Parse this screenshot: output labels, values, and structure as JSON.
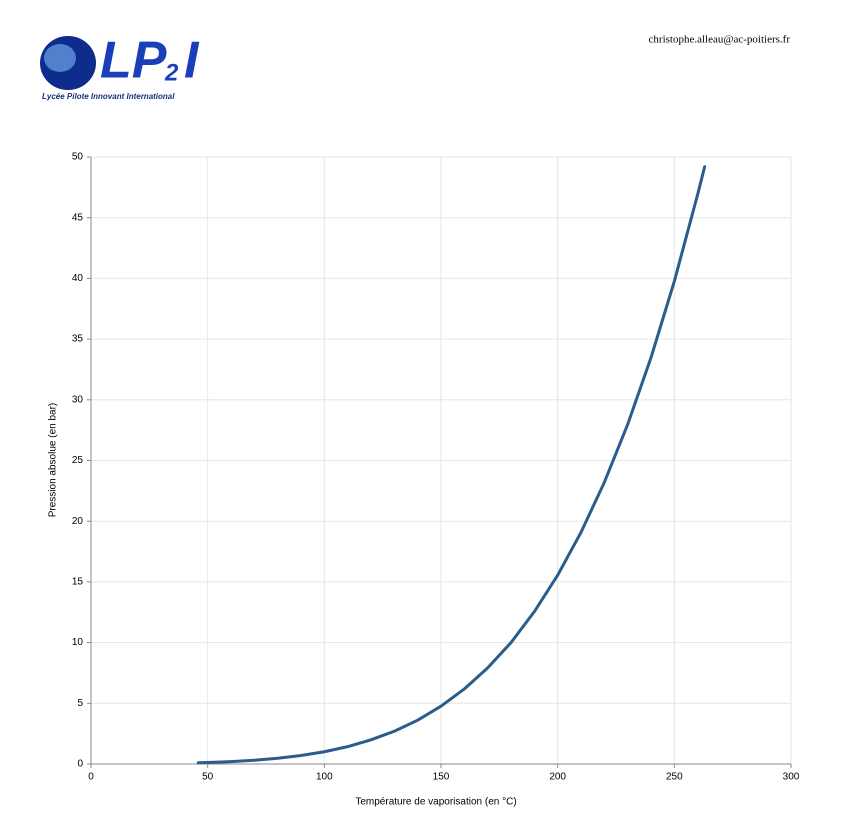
{
  "header": {
    "logo_main": "LP",
    "logo_sub": "2",
    "logo_end": "I",
    "tagline": "Lycée Pilote Innovant International",
    "email": "christophe.alleau@ac-poitiers.fr"
  },
  "chart_data": {
    "type": "line",
    "color": "#2b5d8c",
    "x_label": "Température de vaporisation (en °C)",
    "y_label": "Pression absolue (en bar)",
    "x": [
      46,
      50,
      60,
      70,
      80,
      90,
      100,
      110,
      120,
      130,
      140,
      150,
      160,
      170,
      180,
      190,
      200,
      210,
      220,
      230,
      240,
      250,
      260,
      263
    ],
    "values": [
      0.1,
      0.12,
      0.2,
      0.31,
      0.47,
      0.7,
      1.01,
      1.43,
      1.99,
      2.7,
      3.61,
      4.76,
      6.18,
      7.92,
      10.0,
      12.55,
      15.55,
      19.08,
      23.2,
      27.97,
      33.47,
      39.76,
      46.92,
      49.2
    ],
    "xlim": [
      0,
      300
    ],
    "xticks": [
      0,
      50,
      100,
      150,
      200,
      250,
      300
    ],
    "ylim": [
      0,
      50
    ],
    "yticks": [
      0,
      5,
      10,
      15,
      20,
      25,
      30,
      35,
      40,
      45,
      50
    ],
    "grid": true
  }
}
